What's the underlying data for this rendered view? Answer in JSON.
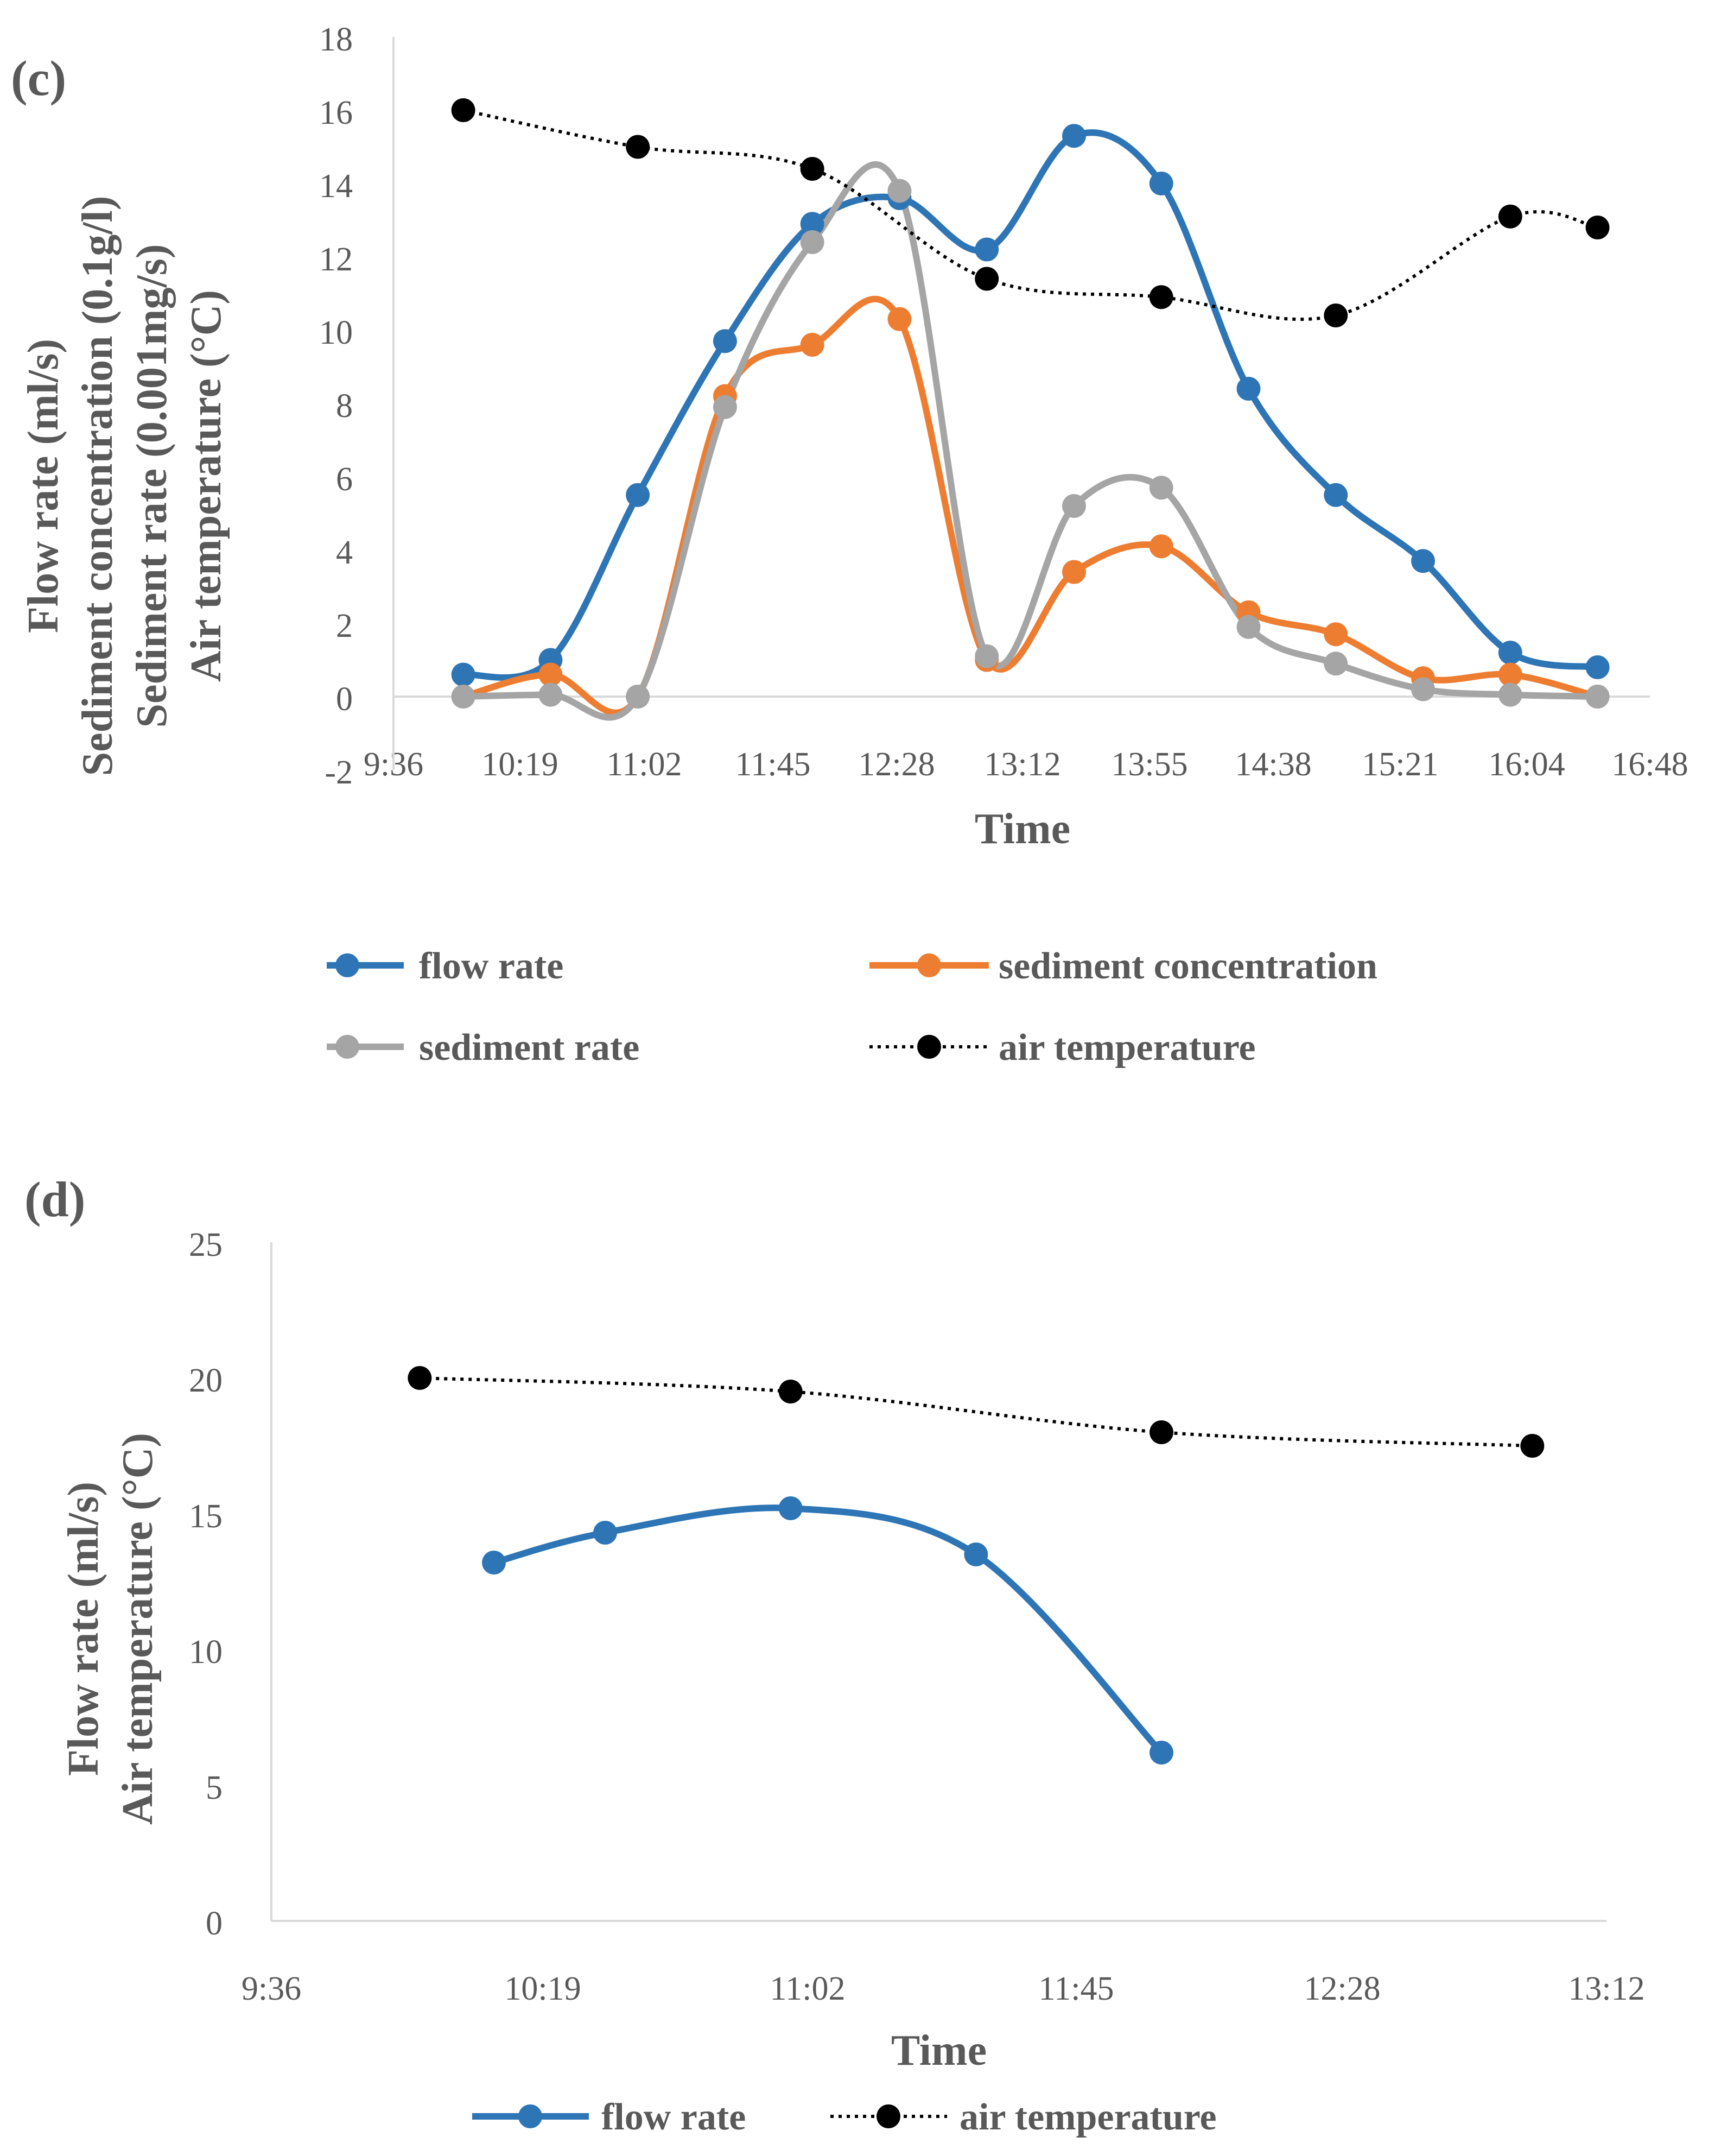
{
  "colors": {
    "flow": "#2E75B6",
    "conc": "#ED7D31",
    "rate": "#A5A5A5",
    "temp": "#000000",
    "axis": "#D9D9D9",
    "text": "#595959"
  },
  "chart_data": [
    {
      "type": "line",
      "panel_label": "(c)",
      "xlabel": "Time",
      "ylabel_lines": [
        "Flow rate (ml/s)",
        "Sediment concentration (0.1g/l)",
        "Sediment rate (0.001mg/s)",
        "Air temperature (°C)"
      ],
      "ylim": [
        -2,
        18
      ],
      "ystep": 2,
      "ytick_labels": [
        "-2",
        "0",
        "2",
        "4",
        "6",
        "8",
        "10",
        "12",
        "14",
        "16",
        "18"
      ],
      "x_unit": "minutes since 9:36",
      "xlim": [
        0,
        432
      ],
      "xtick_labels": [
        "9:36",
        "10:19",
        "11:02",
        "11:45",
        "12:28",
        "13:12",
        "13:55",
        "14:38",
        "15:21",
        "16:04",
        "16:48"
      ],
      "grid": false,
      "legend_position": "bottom",
      "series": [
        {
          "name": "flow rate",
          "color_key": "flow",
          "style": "solid",
          "x": [
            24,
            54,
            84,
            114,
            144,
            174,
            204,
            234,
            264,
            294,
            324,
            354,
            384,
            414
          ],
          "values": [
            0.6,
            1.0,
            5.5,
            9.7,
            12.9,
            13.6,
            12.2,
            15.3,
            14.0,
            8.4,
            5.5,
            3.7,
            1.2,
            0.8
          ]
        },
        {
          "name": "sediment concentration",
          "color_key": "conc",
          "style": "solid",
          "x": [
            24,
            54,
            84,
            114,
            144,
            174,
            204,
            234,
            264,
            294,
            324,
            354,
            384,
            414
          ],
          "values": [
            0.0,
            0.6,
            0.0,
            8.2,
            9.6,
            10.3,
            1.0,
            3.4,
            4.1,
            2.3,
            1.7,
            0.5,
            0.6,
            0.0
          ]
        },
        {
          "name": "sediment rate",
          "color_key": "rate",
          "style": "solid",
          "x": [
            24,
            54,
            84,
            114,
            144,
            174,
            204,
            234,
            264,
            294,
            324,
            354,
            384,
            414
          ],
          "values": [
            0.0,
            0.05,
            0.0,
            7.9,
            12.4,
            13.8,
            1.1,
            5.2,
            5.7,
            1.9,
            0.9,
            0.2,
            0.05,
            0.0
          ]
        },
        {
          "name": "air temperature",
          "color_key": "temp",
          "style": "dotted",
          "x": [
            24,
            84,
            144,
            204,
            264,
            324,
            384,
            414
          ],
          "values": [
            16.0,
            15.0,
            14.4,
            11.4,
            10.9,
            10.4,
            13.1,
            12.8
          ]
        }
      ],
      "legend_rows": [
        [
          "flow rate",
          "sediment concentration"
        ],
        [
          "sediment rate",
          "air temperature"
        ]
      ]
    },
    {
      "type": "line",
      "panel_label": "(d)",
      "xlabel": "Time",
      "ylabel_lines": [
        "Flow rate (ml/s)",
        "Air temperature (°C)"
      ],
      "ylim": [
        0,
        25
      ],
      "ystep": 5,
      "ytick_labels": [
        "0",
        "5",
        "10",
        "15",
        "20",
        "25"
      ],
      "x_unit": "minutes since 9:36",
      "xlim": [
        0,
        216
      ],
      "xtick_labels": [
        "9:36",
        "10:19",
        "11:02",
        "11:45",
        "12:28",
        "13:12"
      ],
      "grid": false,
      "legend_position": "bottom",
      "series": [
        {
          "name": "flow rate",
          "color_key": "flow",
          "style": "solid",
          "x": [
            36,
            54,
            84,
            114,
            144
          ],
          "values": [
            13.2,
            14.3,
            15.2,
            13.5,
            6.2
          ]
        },
        {
          "name": "air temperature",
          "color_key": "temp",
          "style": "dotted",
          "x": [
            24,
            84,
            144,
            204
          ],
          "values": [
            20.0,
            19.5,
            18.0,
            17.5
          ]
        }
      ],
      "legend_rows": [
        [
          "flow rate",
          "air temperature"
        ]
      ]
    }
  ]
}
